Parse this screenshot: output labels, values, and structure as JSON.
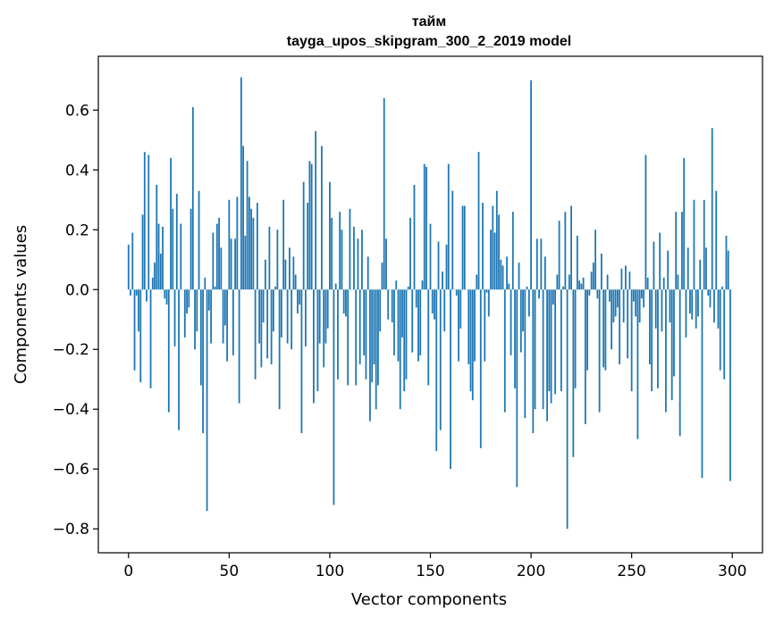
{
  "chart_data": {
    "type": "bar",
    "title": "тайм",
    "subtitle": "tayga_upos_skipgram_300_2_2019 model",
    "xlabel": "Vector components",
    "ylabel": "Components values",
    "xlim": [
      -15,
      315
    ],
    "ylim": [
      -0.88,
      0.78
    ],
    "xticks": [
      0,
      50,
      100,
      150,
      200,
      250,
      300
    ],
    "yticks": [
      -0.8,
      -0.6,
      -0.4,
      -0.2,
      0.0,
      0.2,
      0.4,
      0.6
    ],
    "ytick_labels": [
      "−0.8",
      "−0.6",
      "−0.4",
      "−0.2",
      "0.0",
      "0.2",
      "0.4",
      "0.6"
    ],
    "bar_color": "#1f77b4",
    "grid": false,
    "x": "0..299",
    "values": [
      0.15,
      -0.02,
      0.19,
      -0.27,
      -0.02,
      -0.14,
      -0.31,
      0.25,
      0.46,
      -0.04,
      0.45,
      -0.33,
      0.04,
      0.09,
      0.35,
      0.22,
      0.12,
      0.21,
      -0.03,
      -0.05,
      -0.41,
      0.44,
      0.27,
      -0.19,
      0.32,
      -0.47,
      0.22,
      0.0,
      -0.16,
      -0.08,
      -0.06,
      0.27,
      0.61,
      -0.2,
      -0.14,
      0.33,
      -0.32,
      -0.48,
      0.04,
      -0.74,
      -0.07,
      -0.18,
      0.19,
      0.01,
      0.22,
      0.24,
      0.14,
      -0.18,
      -0.12,
      -0.24,
      0.3,
      0.17,
      -0.22,
      0.17,
      0.31,
      -0.38,
      0.71,
      0.48,
      0.18,
      0.43,
      0.31,
      0.27,
      0.24,
      -0.3,
      0.29,
      -0.18,
      -0.26,
      -0.11,
      0.1,
      -0.23,
      0.21,
      -0.25,
      -0.14,
      0.01,
      0.2,
      -0.4,
      -0.16,
      0.3,
      0.1,
      -0.18,
      0.14,
      -0.2,
      0.11,
      0.05,
      -0.08,
      -0.05,
      -0.48,
      0.36,
      -0.19,
      0.29,
      0.43,
      0.42,
      -0.38,
      0.53,
      -0.34,
      -0.18,
      0.48,
      -0.26,
      -0.18,
      -0.13,
      0.36,
      0.24,
      -0.72,
      0.02,
      -0.3,
      0.26,
      0.2,
      -0.08,
      -0.09,
      -0.32,
      0.27,
      0.0,
      0.21,
      -0.32,
      0.17,
      -0.25,
      0.2,
      -0.22,
      -0.3,
      0.11,
      -0.44,
      -0.31,
      -0.25,
      -0.4,
      -0.32,
      -0.14,
      0.09,
      0.64,
      0.17,
      -0.1,
      0.0,
      -0.11,
      -0.22,
      0.03,
      -0.24,
      -0.4,
      -0.16,
      -0.34,
      -0.3,
      0.01,
      0.24,
      -0.21,
      0.35,
      -0.06,
      -0.24,
      -0.22,
      0.03,
      0.42,
      0.41,
      -0.32,
      0.22,
      -0.08,
      -0.1,
      -0.54,
      0.16,
      -0.47,
      0.06,
      -0.14,
      0.15,
      0.42,
      -0.6,
      0.33,
      0.0,
      -0.02,
      -0.24,
      -0.13,
      0.28,
      0.28,
      0.0,
      -0.25,
      -0.34,
      -0.37,
      -0.24,
      0.05,
      0.46,
      -0.53,
      0.29,
      -0.24,
      -0.01,
      -0.09,
      0.2,
      0.28,
      0.19,
      0.33,
      0.25,
      0.1,
      0.08,
      -0.41,
      0.11,
      0.02,
      -0.22,
      0.26,
      -0.33,
      -0.66,
      0.09,
      -0.21,
      -0.14,
      -0.43,
      0.01,
      -0.09,
      0.7,
      -0.48,
      -0.4,
      0.17,
      -0.03,
      0.17,
      -0.4,
      0.11,
      -0.44,
      -0.34,
      -0.38,
      -0.05,
      -0.35,
      0.05,
      0.23,
      -0.34,
      0.01,
      0.26,
      -0.8,
      0.05,
      0.28,
      -0.56,
      -0.33,
      0.18,
      0.03,
      0.02,
      0.04,
      -0.45,
      -0.27,
      -0.02,
      0.06,
      0.09,
      0.2,
      -0.03,
      -0.41,
      0.12,
      -0.26,
      -0.27,
      0.05,
      -0.04,
      -0.2,
      -0.11,
      -0.09,
      -0.06,
      -0.25,
      0.07,
      -0.11,
      0.08,
      -0.23,
      0.06,
      -0.34,
      -0.04,
      -0.09,
      -0.5,
      -0.11,
      -0.03,
      -0.06,
      0.45,
      0.04,
      -0.25,
      -0.34,
      0.16,
      -0.13,
      -0.33,
      0.19,
      -0.14,
      0.04,
      -0.41,
      0.13,
      -0.11,
      -0.37,
      -0.29,
      0.26,
      0.05,
      -0.49,
      0.26,
      0.44,
      -0.16,
      0.14,
      -0.08,
      -0.1,
      0.3,
      -0.13,
      -0.09,
      0.1,
      -0.63,
      0.3,
      0.14,
      -0.02,
      -0.06,
      0.54,
      -0.11,
      0.33,
      -0.13,
      -0.27,
      0.01,
      -0.3,
      0.18,
      0.13,
      -0.64
    ]
  }
}
